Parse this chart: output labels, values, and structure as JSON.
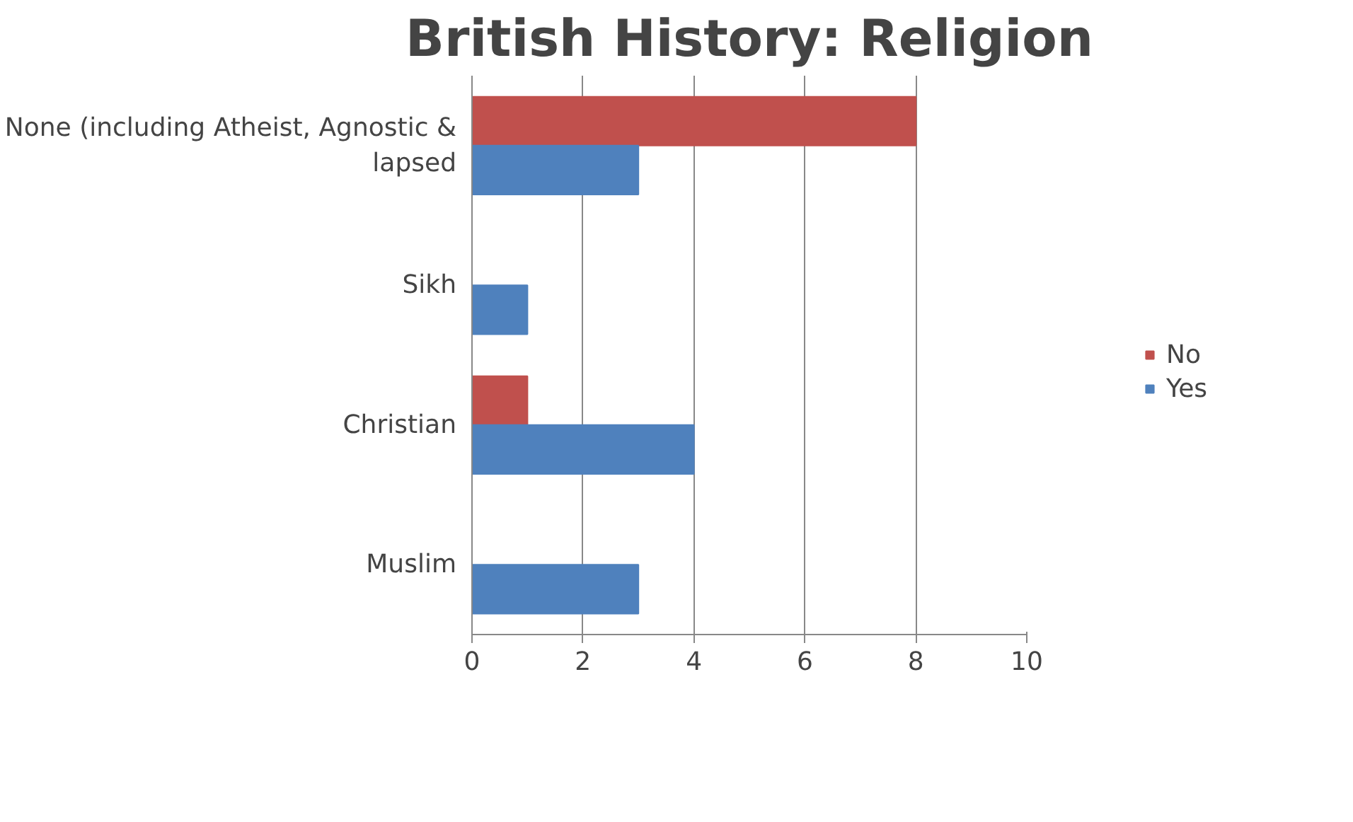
{
  "chart_data": {
    "type": "bar",
    "orientation": "horizontal",
    "title": "British History: Religion",
    "categories": [
      "None (including Atheist, Agnostic & lapsed",
      "Sikh",
      "Christian",
      "Muslim"
    ],
    "series": [
      {
        "name": "No",
        "color": "#c0504d",
        "values": [
          8,
          0,
          1,
          0
        ]
      },
      {
        "name": "Yes",
        "color": "#4f81bd",
        "values": [
          3,
          1,
          4,
          3
        ]
      }
    ],
    "xlim": [
      0,
      10
    ],
    "xticks": [
      0,
      2,
      4,
      6,
      8,
      10
    ],
    "grid": "x",
    "legend": "right"
  }
}
